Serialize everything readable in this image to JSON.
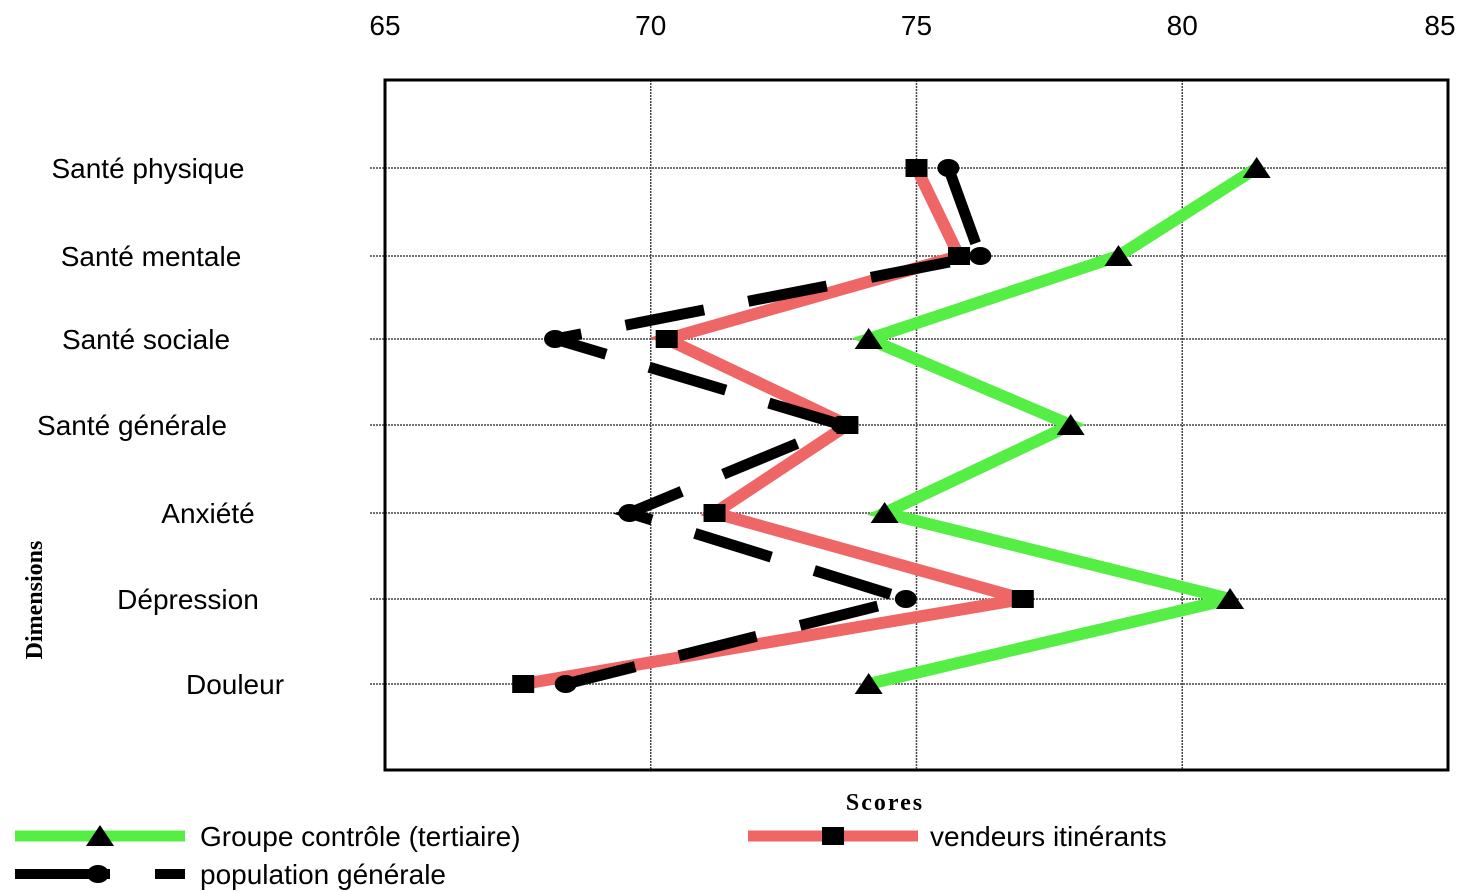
{
  "chart_data": {
    "type": "line",
    "orientation": "horizontal",
    "xlabel": "Scores",
    "ylabel": "Dimensions",
    "xlim": [
      65,
      85
    ],
    "xticks": [
      "65",
      "70",
      "75",
      "80",
      "85"
    ],
    "categories": [
      "Santé  physique",
      "Santé  mentale",
      "Santé  sociale",
      "Santé  générale",
      "Anxiété",
      "Dépression",
      "Douleur"
    ],
    "grid": true,
    "legend_position": "bottom",
    "series": [
      {
        "name": "Groupe contrôle (tertiaire)",
        "values": [
          81.4,
          78.8,
          74.1,
          77.9,
          74.4,
          80.9,
          74.1
        ],
        "color": "#55ee44",
        "marker": "triangle",
        "style": "solid"
      },
      {
        "name": "vendeurs itinérants",
        "values": [
          75.0,
          75.8,
          70.3,
          73.7,
          71.2,
          77.0,
          67.6
        ],
        "color": "#ee6666",
        "marker": "square",
        "style": "solid"
      },
      {
        "name": "population générale",
        "values": [
          75.6,
          76.2,
          68.2,
          73.6,
          69.6,
          74.8,
          68.4
        ],
        "color": "#000000",
        "marker": "circle",
        "style": "dashed"
      }
    ]
  }
}
